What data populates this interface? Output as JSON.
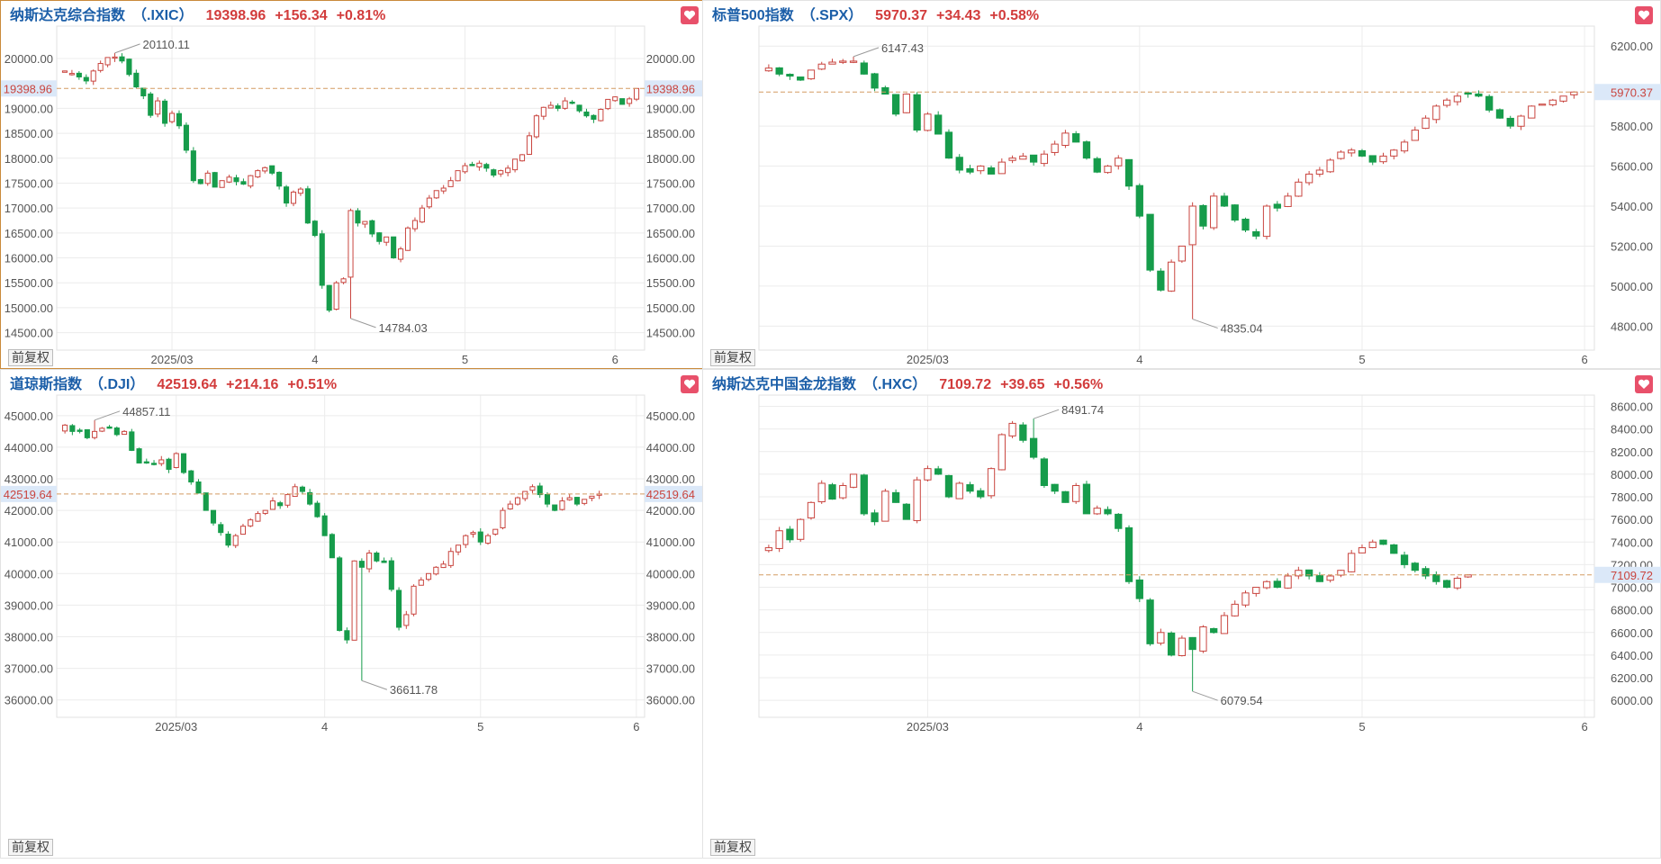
{
  "adjust_label": "前复权",
  "colors": {
    "up": "#c9453f",
    "down": "#169c4b",
    "grid": "#ececec",
    "price_line": "#d39b62",
    "axis_text": "#555555",
    "label_text": "#555555",
    "price_tag_bg": "#dbe8f8",
    "price_tag_text": "#c9453f",
    "favorite": "#e8506a"
  },
  "chart_data": [
    {
      "type": "candlestick",
      "name": "纳斯达克综合指数",
      "symbol": "（.IXIC）",
      "price": "19398.96",
      "change": "+156.34",
      "change_pct": "+0.81%",
      "current": 19398.96,
      "current_label": "19398.96",
      "ylim": [
        14150,
        20650
      ],
      "yticks": [
        14500,
        15000,
        15500,
        16000,
        16500,
        17000,
        17500,
        18000,
        18500,
        19000,
        20000
      ],
      "ytick_labels": [
        "14500.00",
        "15000.00",
        "15500.00",
        "16000.00",
        "16500.00",
        "17000.00",
        "17500.00",
        "18000.00",
        "18500.00",
        "19000.00",
        "20000.00"
      ],
      "xticks": [
        {
          "index": 15,
          "label": "2025/03"
        },
        {
          "index": 35,
          "label": "4"
        },
        {
          "index": 56,
          "label": "5"
        },
        {
          "index": 77,
          "label": "6"
        }
      ],
      "high_label": {
        "index": 7,
        "value": 20110.11,
        "text": "20110.11"
      },
      "low_label": {
        "index": 40,
        "value": 14784.03,
        "text": "14784.03"
      },
      "close": [
        19750,
        19700,
        19630,
        19550,
        19750,
        19900,
        20020,
        20030,
        19950,
        19680,
        19430,
        19250,
        18860,
        19150,
        18700,
        18900,
        18650,
        18160,
        17550,
        17490,
        17700,
        17420,
        17550,
        17620,
        17530,
        17480,
        17650,
        17750,
        17810,
        17700,
        17440,
        17100,
        17320,
        17380,
        16700,
        16450,
        15450,
        14950,
        15500,
        15580,
        16950,
        16700,
        16730,
        16480,
        16330,
        16420,
        16000,
        16180,
        16600,
        16750,
        17000,
        17200,
        17350,
        17400,
        17550,
        17750,
        17850,
        17850,
        17900,
        17800,
        17660,
        17750,
        17800,
        17980,
        18070,
        18450,
        18850,
        19020,
        19060,
        19000,
        19150,
        19100,
        18950,
        18850,
        18780,
        18980,
        19180,
        19230,
        19080,
        19190,
        19398.96
      ]
    },
    {
      "type": "candlestick",
      "name": "标普500指数",
      "symbol": "（.SPX）",
      "price": "5970.37",
      "change": "+34.43",
      "change_pct": "+0.58%",
      "current": 5970.37,
      "current_label": "5970.37",
      "ylim": [
        4680,
        6300
      ],
      "yticks": [
        4800,
        5000,
        5200,
        5400,
        5600,
        5800,
        6200
      ],
      "ytick_labels": [
        "4800.00",
        "5000.00",
        "5200.00",
        "5400.00",
        "5600.00",
        "5800.00",
        "6200.00"
      ],
      "xticks": [
        {
          "index": 15,
          "label": "2025/03"
        },
        {
          "index": 35,
          "label": "4"
        },
        {
          "index": 56,
          "label": "5"
        },
        {
          "index": 77,
          "label": "6"
        }
      ],
      "high_label": {
        "index": 8,
        "value": 6147.43,
        "text": "6147.43"
      },
      "low_label": {
        "index": 40,
        "value": 4835.04,
        "text": "4835.04"
      },
      "close": [
        6090,
        6060,
        6050,
        6030,
        6080,
        6110,
        6120,
        6125,
        6125,
        6060,
        5990,
        5960,
        5860,
        5960,
        5780,
        5860,
        5760,
        5640,
        5580,
        5570,
        5600,
        5560,
        5620,
        5640,
        5650,
        5620,
        5660,
        5710,
        5765,
        5720,
        5640,
        5570,
        5600,
        5640,
        5500,
        5350,
        5080,
        4980,
        5120,
        5200,
        5400,
        5300,
        5450,
        5400,
        5330,
        5280,
        5250,
        5400,
        5390,
        5450,
        5520,
        5560,
        5580,
        5630,
        5670,
        5680,
        5650,
        5620,
        5650,
        5680,
        5720,
        5780,
        5840,
        5900,
        5930,
        5950,
        5960,
        5950,
        5880,
        5840,
        5800,
        5850,
        5900,
        5910,
        5930,
        5950,
        5970.37
      ]
    },
    {
      "type": "candlestick",
      "name": "道琼斯指数",
      "symbol": "（.DJI）",
      "price": "42519.64",
      "change": "+214.16",
      "change_pct": "+0.51%",
      "current": 42519.64,
      "current_label": "42519.64",
      "ylim": [
        35450,
        45650
      ],
      "yticks": [
        36000,
        37000,
        38000,
        39000,
        40000,
        41000,
        42000,
        43000,
        44000,
        45000
      ],
      "ytick_labels": [
        "36000.00",
        "37000.00",
        "38000.00",
        "39000.00",
        "40000.00",
        "41000.00",
        "42000.00",
        "43000.00",
        "44000.00",
        "45000.00"
      ],
      "xticks": [
        {
          "index": 15,
          "label": "2025/03"
        },
        {
          "index": 35,
          "label": "4"
        },
        {
          "index": 56,
          "label": "5"
        },
        {
          "index": 77,
          "label": "6"
        }
      ],
      "high_label": {
        "index": 4,
        "value": 44857.11,
        "text": "44857.11"
      },
      "low_label": {
        "index": 40,
        "value": 36611.78,
        "text": "36611.78"
      },
      "close": [
        44700,
        44500,
        44500,
        44300,
        44500,
        44600,
        44600,
        44400,
        44500,
        43900,
        43500,
        43500,
        43450,
        43600,
        43300,
        43800,
        43200,
        42900,
        42550,
        42000,
        41600,
        41300,
        40900,
        41200,
        41500,
        41700,
        41900,
        42000,
        42300,
        42150,
        42500,
        42750,
        42600,
        42200,
        41800,
        41200,
        40500,
        38200,
        37900,
        40400,
        40200,
        40650,
        40400,
        40350,
        39500,
        38300,
        38700,
        39600,
        39800,
        40000,
        40200,
        40300,
        40700,
        40900,
        41200,
        41300,
        41000,
        41200,
        41400,
        42000,
        42200,
        42400,
        42600,
        42750,
        42500,
        42200,
        42000,
        42300,
        42400,
        42200,
        42350,
        42450,
        42519.64
      ]
    },
    {
      "type": "candlestick",
      "name": "纳斯达克中国金龙指数",
      "symbol": "（.HXC）",
      "price": "7109.72",
      "change": "+39.65",
      "change_pct": "+0.56%",
      "current": 7109.72,
      "current_label": "7109.72",
      "ylim": [
        5850,
        8700
      ],
      "yticks": [
        6000,
        6200,
        6400,
        6600,
        6800,
        7000,
        7200,
        7400,
        7600,
        7800,
        8000,
        8200,
        8400,
        8600
      ],
      "ytick_labels": [
        "6000.00",
        "6200.00",
        "6400.00",
        "6600.00",
        "6800.00",
        "7000.00",
        "7200.00",
        "7400.00",
        "7600.00",
        "7800.00",
        "8000.00",
        "8200.00",
        "8400.00",
        "8600.00"
      ],
      "xticks": [
        {
          "index": 15,
          "label": "2025/03"
        },
        {
          "index": 35,
          "label": "4"
        },
        {
          "index": 56,
          "label": "5"
        },
        {
          "index": 77,
          "label": "6"
        }
      ],
      "high_label": {
        "index": 25,
        "value": 8491.74,
        "text": "8491.74"
      },
      "low_label": {
        "index": 40,
        "value": 6079.54,
        "text": "6079.54"
      },
      "close": [
        7350,
        7500,
        7420,
        7600,
        7750,
        7920,
        7780,
        7900,
        8000,
        7650,
        7580,
        7850,
        7750,
        7600,
        7950,
        8050,
        8000,
        7800,
        7920,
        7850,
        7800,
        8050,
        8350,
        8450,
        8300,
        8150,
        7900,
        7850,
        7750,
        7900,
        7650,
        7700,
        7650,
        7520,
        7050,
        6900,
        6500,
        6600,
        6400,
        6550,
        6450,
        6650,
        6600,
        6750,
        6850,
        6950,
        7000,
        7050,
        7000,
        7100,
        7150,
        7100,
        7050,
        7100,
        7150,
        7300,
        7350,
        7400,
        7380,
        7300,
        7200,
        7150,
        7100,
        7050,
        7000,
        7080,
        7109.72
      ]
    }
  ]
}
